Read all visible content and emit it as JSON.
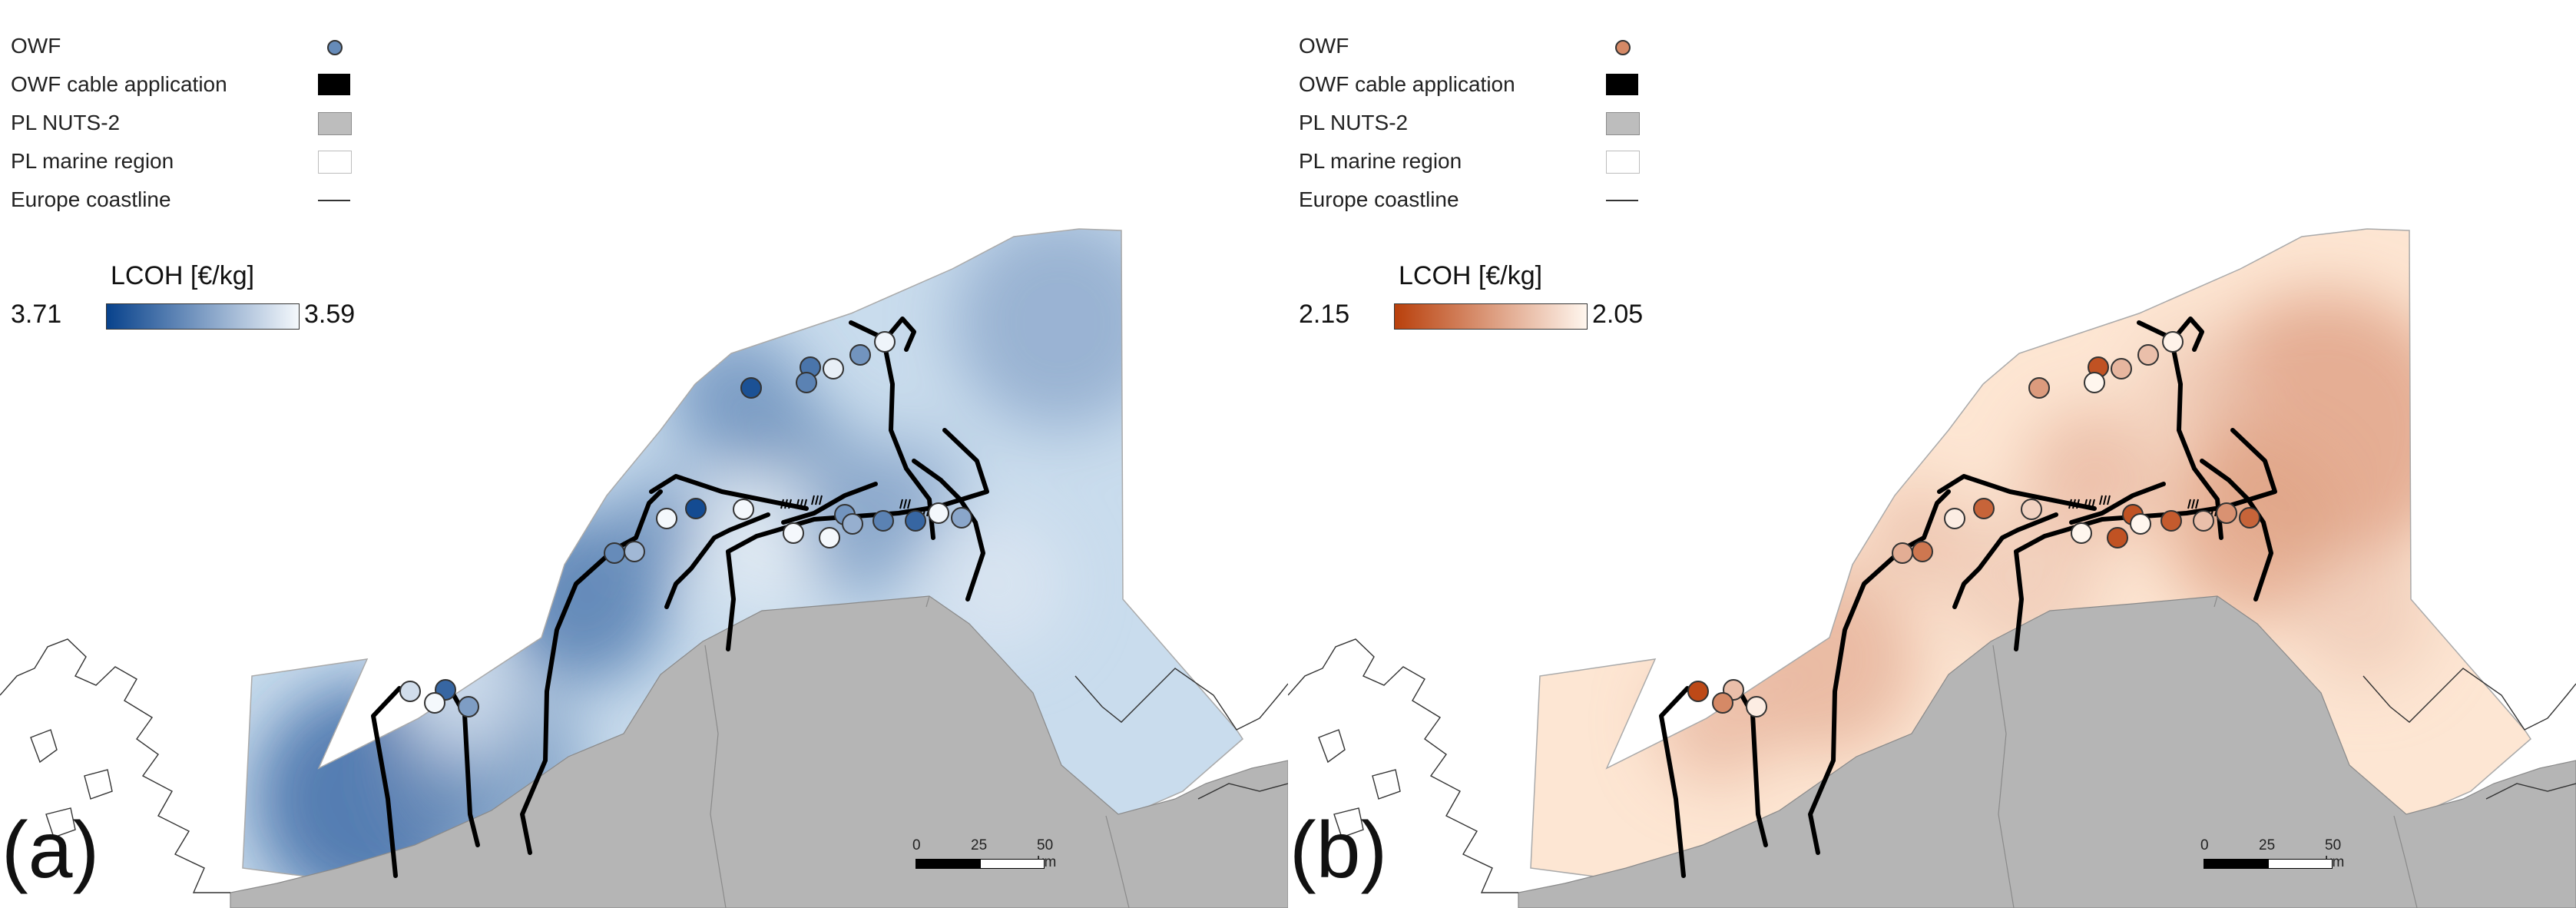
{
  "legend": {
    "owf": "OWF",
    "owf_cable": "OWF cable application",
    "pl_nuts2": "PL NUTS-2",
    "pl_marine": "PL marine region",
    "europe_coastline": "Europe coastline"
  },
  "scalebar": {
    "tick_0": "0",
    "tick_25": "25",
    "tick_50": "50 km"
  },
  "colors": {
    "land": "#b5b5b5",
    "cable": "#000000",
    "coastline": "#333333"
  },
  "panels": [
    {
      "label": "(a)",
      "colorbar_title": "LCOH [€/kg]",
      "colorbar_min_label": "3.71",
      "colorbar_max_label": "3.59",
      "ramp_dark": "#08428c",
      "ramp_light": "#f4f8fc",
      "marine_fill": "#c9dced"
    },
    {
      "label": "(b)",
      "colorbar_title": "LCOH [€/kg]",
      "colorbar_min_label": "2.15",
      "colorbar_max_label": "2.05",
      "ramp_dark": "#b9400c",
      "ramp_light": "#fff6ee",
      "marine_fill": "#fde6d3"
    }
  ]
}
